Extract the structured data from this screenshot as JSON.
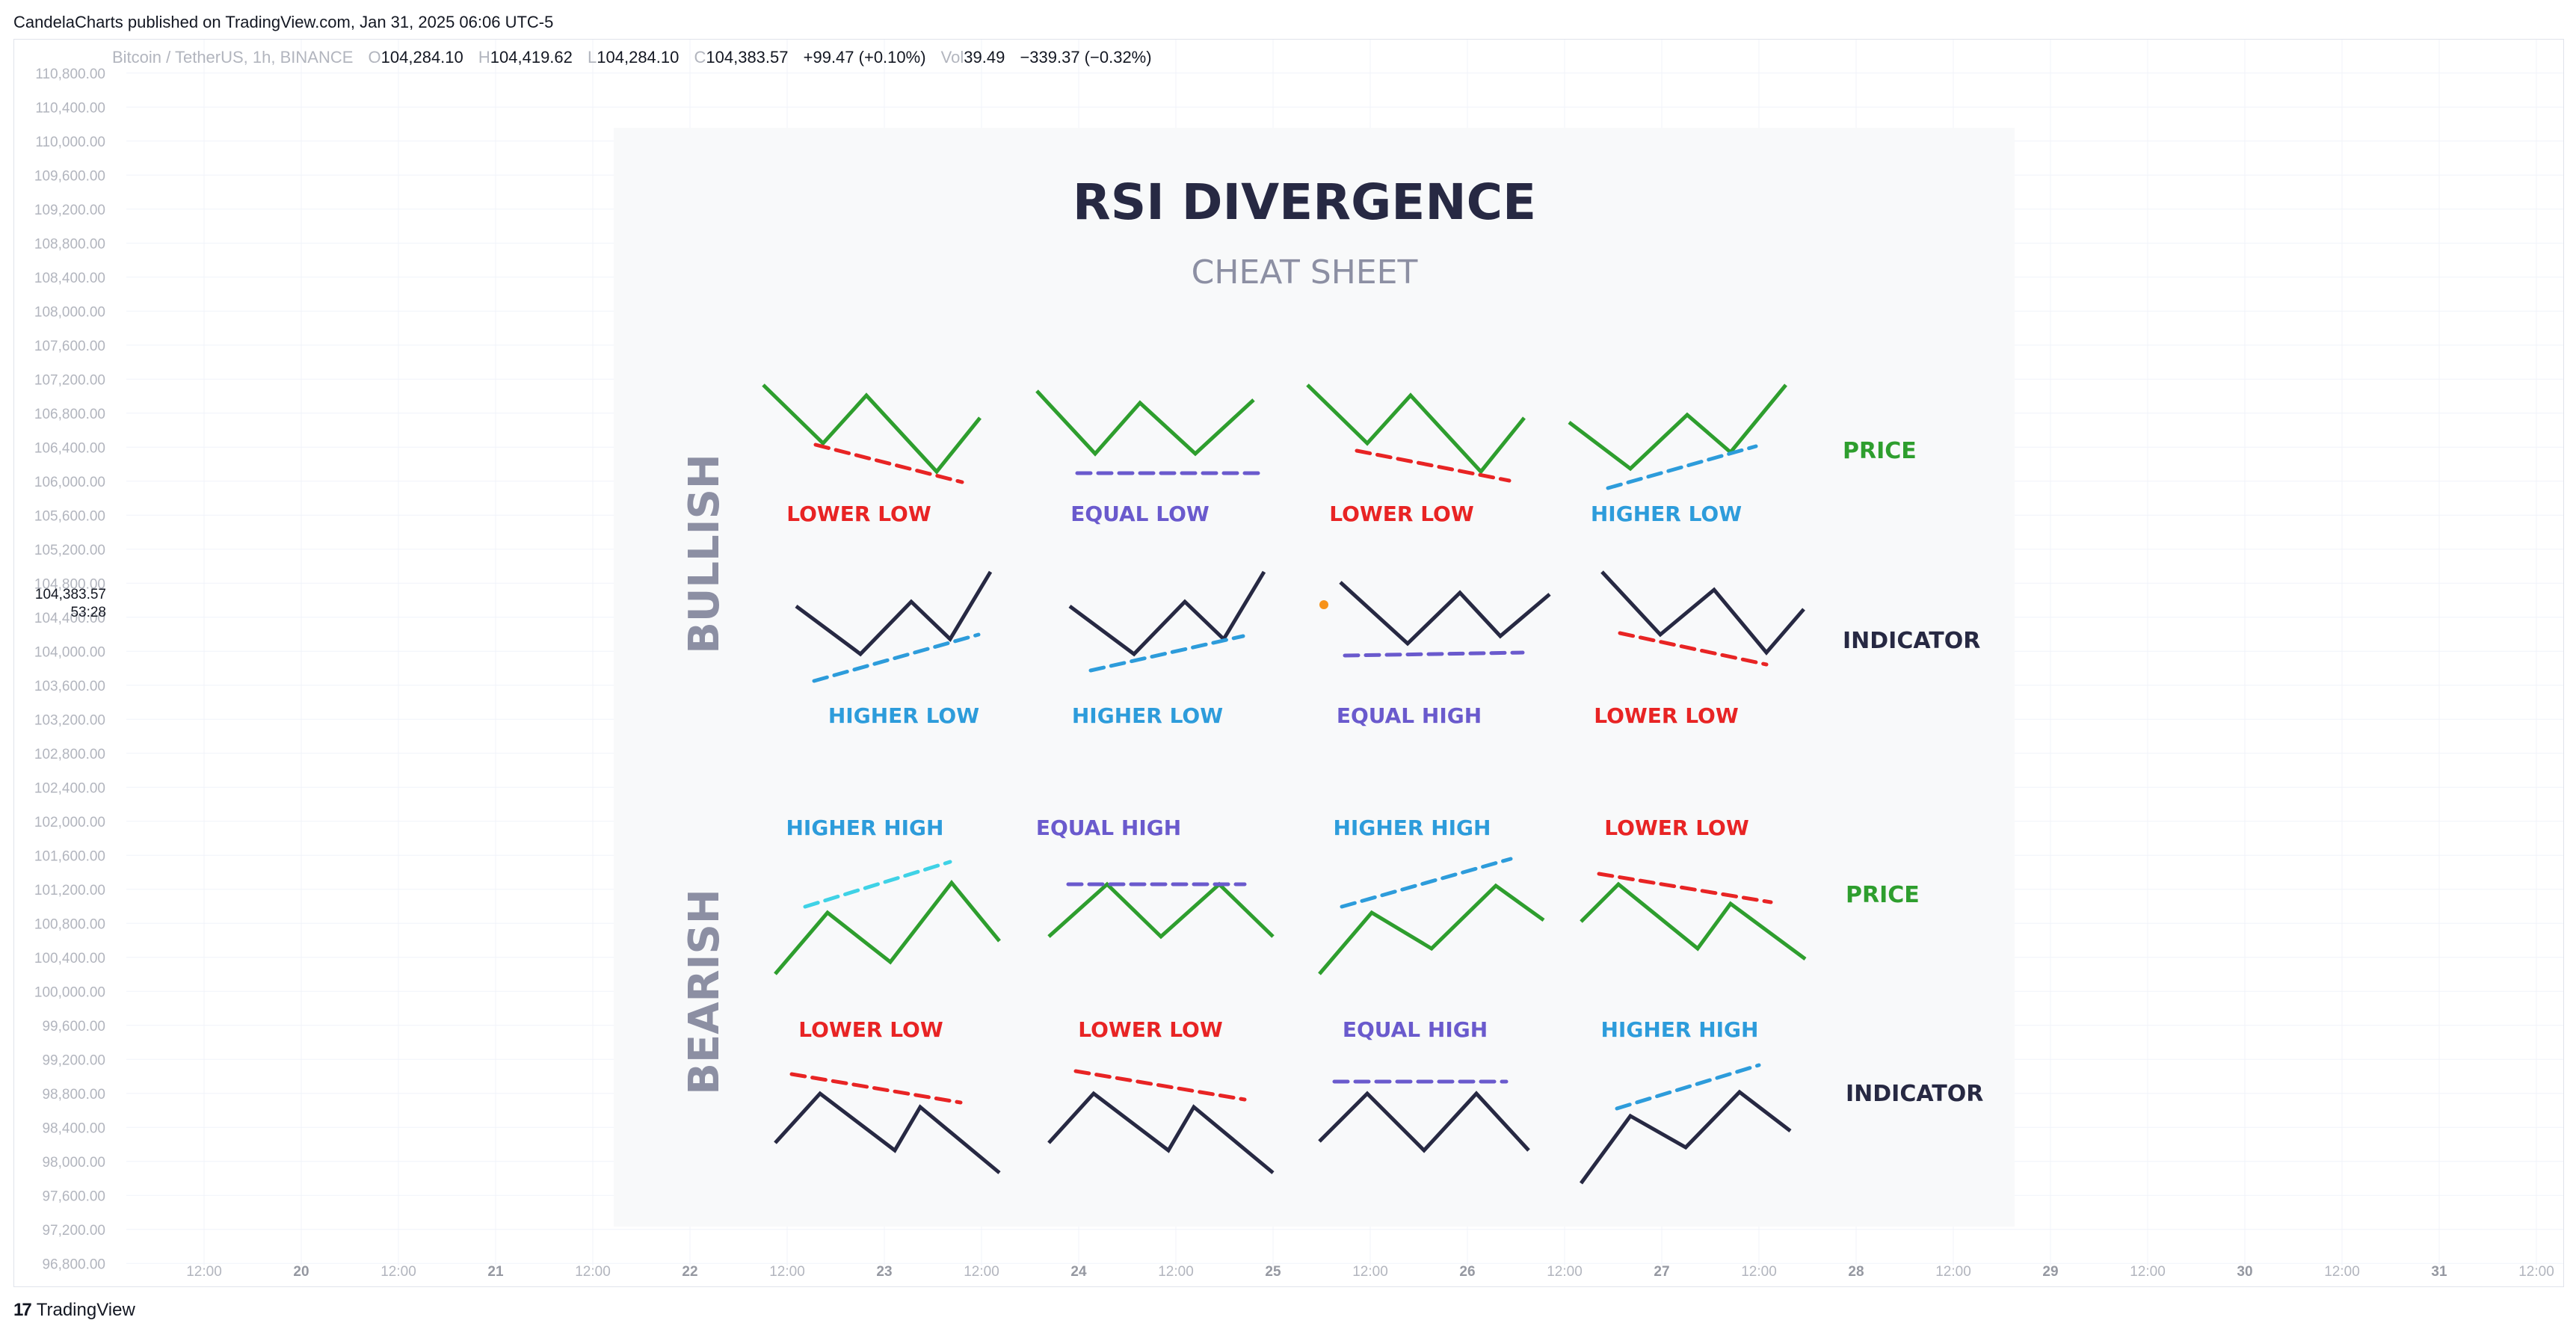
{
  "header": {
    "published": "CandelaCharts published on TradingView.com, Jan 31, 2025 06:06 UTC-5"
  },
  "legend": {
    "symbol": "Bitcoin / TetherUS, 1h, BINANCE",
    "o_label": "O",
    "o": "104,284.10",
    "h_label": "H",
    "h": "104,419.62",
    "l_label": "L",
    "l": "104,284.10",
    "c_label": "C",
    "c": "104,383.57",
    "change": "+99.47 (+0.10%)",
    "vol_label": "Vol",
    "vol": "39.49",
    "vol_change": "−339.37 (−0.32%)"
  },
  "price_tag": {
    "price": "104,383.57",
    "countdown": "53:28"
  },
  "footer": {
    "logo": "17",
    "brand": "TradingView"
  },
  "colors": {
    "grid": "#f0f3fa",
    "axis_text": "#b2b5be",
    "card_bg": "#f8f9fa",
    "dark": "#272943",
    "green": "#2e9e2e",
    "red": "#e82424",
    "blue": "#2d9cdb",
    "purple": "#6a5acd",
    "gray": "#8c8fa3"
  },
  "chart_data": {
    "type": "table",
    "symbol": "Bitcoin / TetherUS",
    "interval": "1h",
    "exchange": "BINANCE",
    "y_axis": {
      "ticks": [
        "110,800.00",
        "110,400.00",
        "110,000.00",
        "109,600.00",
        "109,200.00",
        "108,800.00",
        "108,400.00",
        "108,000.00",
        "107,600.00",
        "107,200.00",
        "106,800.00",
        "106,400.00",
        "106,000.00",
        "105,600.00",
        "105,200.00",
        "104,800.00",
        "104,400.00",
        "104,000.00",
        "103,600.00",
        "103,200.00",
        "102,800.00",
        "102,400.00",
        "102,000.00",
        "101,600.00",
        "101,200.00",
        "100,800.00",
        "100,400.00",
        "100,000.00",
        "99,600.00",
        "99,200.00",
        "98,800.00",
        "98,400.00",
        "98,000.00",
        "97,600.00",
        "97,200.00",
        "96,800.00"
      ],
      "range": [
        96600,
        111000
      ]
    },
    "x_axis": {
      "ticks": [
        "12:00",
        "20",
        "12:00",
        "21",
        "12:00",
        "22",
        "12:00",
        "23",
        "12:00",
        "24",
        "12:00",
        "25",
        "12:00",
        "26",
        "12:00",
        "27",
        "12:00",
        "28",
        "12:00",
        "29",
        "12:00",
        "30",
        "12:00",
        "31",
        "12:00"
      ]
    },
    "cheat_sheet": {
      "title": "RSI DIVERGENCE",
      "subtitle": "CHEAT SHEET",
      "sections": [
        {
          "name": "BULLISH",
          "price_row_label": "PRICE",
          "indicator_row_label": "INDICATOR",
          "price_labels": [
            "LOWER LOW",
            "EQUAL LOW",
            "LOWER LOW",
            "HIGHER LOW"
          ],
          "indicator_labels": [
            "HIGHER LOW",
            "HIGHER LOW",
            "EQUAL HIGH",
            "LOWER LOW"
          ]
        },
        {
          "name": "BEARISH",
          "price_row_label": "PRICE",
          "indicator_row_label": "INDICATOR",
          "price_labels": [
            "HIGHER HIGH",
            "EQUAL HIGH",
            "HIGHER HIGH",
            "LOWER LOW"
          ],
          "indicator_labels": [
            "LOWER LOW",
            "LOWER LOW",
            "EQUAL HIGH",
            "HIGHER HIGH"
          ]
        }
      ]
    }
  }
}
